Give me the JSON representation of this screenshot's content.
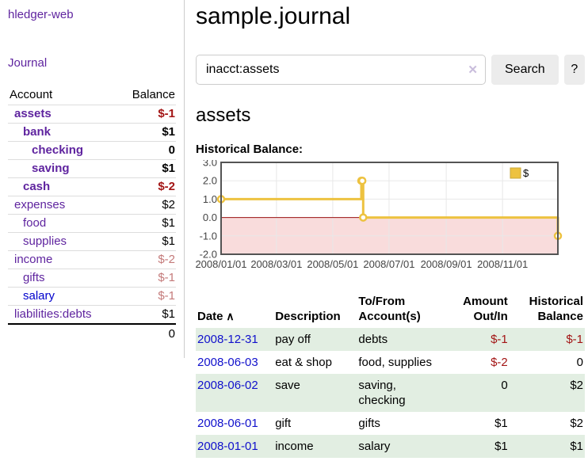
{
  "app": {
    "title": "hledger-web"
  },
  "sidebar": {
    "journal_link": "Journal",
    "accounts_table": {
      "headers": [
        "Account",
        "Balance"
      ],
      "rows": [
        {
          "account": "assets",
          "balance": "$-1",
          "depth": 1,
          "matched": true
        },
        {
          "account": "bank",
          "balance": "$1",
          "depth": 2,
          "matched": true
        },
        {
          "account": "checking",
          "balance": "0",
          "depth": 3,
          "matched": true
        },
        {
          "account": "saving",
          "balance": "$1",
          "depth": 3,
          "matched": true
        },
        {
          "account": "cash",
          "balance": "$-2",
          "depth": 2,
          "matched": true
        },
        {
          "account": "expenses",
          "balance": "$2",
          "depth": 1,
          "matched": false
        },
        {
          "account": "food",
          "balance": "$1",
          "depth": 2,
          "matched": false
        },
        {
          "account": "supplies",
          "balance": "$1",
          "depth": 2,
          "matched": false
        },
        {
          "account": "income",
          "balance": "$-2",
          "depth": 1,
          "matched": false
        },
        {
          "account": "gifts",
          "balance": "$-1",
          "depth": 2,
          "matched": false
        },
        {
          "account": "salary",
          "balance": "$-1",
          "depth": 2,
          "matched": false,
          "link_style": "blue"
        },
        {
          "account": "liabilities:debts",
          "balance": "$1",
          "depth": 1,
          "matched": false
        }
      ],
      "total": "0"
    }
  },
  "header": {
    "title": "sample.journal"
  },
  "search": {
    "value": "inacct:assets",
    "clear_icon": "✕",
    "button_label": "Search",
    "help_label": "?"
  },
  "account_page": {
    "title": "assets",
    "chart_label": "Historical Balance:"
  },
  "chart_data": {
    "type": "line",
    "title": "Historical Balance",
    "step": true,
    "series": [
      {
        "name": "$",
        "color": "#edc240"
      }
    ],
    "x": [
      "2008-01-01",
      "2008-06-01",
      "2008-06-02",
      "2008-06-03",
      "2008-12-31"
    ],
    "y": [
      1,
      2,
      2,
      0,
      -1
    ],
    "xlim": [
      "2008-01-01",
      "2008-12-31"
    ],
    "ylim": [
      -2,
      3
    ],
    "x_ticks": [
      {
        "date": "2008-01-01",
        "label": "2008/01/01"
      },
      {
        "date": "2008-03-01",
        "label": "2008/03/01"
      },
      {
        "date": "2008-05-01",
        "label": "2008/05/01"
      },
      {
        "date": "2008-07-01",
        "label": "2008/07/01"
      },
      {
        "date": "2008-09-01",
        "label": "2008/09/01"
      },
      {
        "date": "2008-11-01",
        "label": "2008/11/01"
      }
    ],
    "y_ticks": [
      {
        "value": 3,
        "label": "3.0"
      },
      {
        "value": 2,
        "label": "2.0"
      },
      {
        "value": 1,
        "label": "1.0"
      },
      {
        "value": 0,
        "label": "0.0"
      },
      {
        "value": -1,
        "label": "-1.0"
      },
      {
        "value": -2,
        "label": "-2.0"
      }
    ],
    "legend": {
      "label": "$",
      "position": "top-right"
    },
    "grid": true,
    "colors": {
      "series": "#edc240",
      "marker_fill": "#ffffff",
      "grid": "#e8e8e8",
      "border": "#545454",
      "negative_region": "#f9dcdc",
      "zero_line": "#991111",
      "tick_text": "#444444"
    }
  },
  "register_table": {
    "headers": [
      {
        "label": "Date",
        "align": "left",
        "sorted": true
      },
      {
        "label": "Description",
        "align": "left"
      },
      {
        "label": "To/From\nAccount(s)",
        "align": "left"
      },
      {
        "label": "Amount\nOut/In",
        "align": "right"
      },
      {
        "label": "Historical\nBalance",
        "align": "right"
      }
    ],
    "sort_arrow": "∧",
    "rows": [
      {
        "date": "2008-12-31",
        "description": "pay off",
        "accounts": "debts",
        "amount": "$-1",
        "balance": "$-1"
      },
      {
        "date": "2008-06-03",
        "description": "eat & shop",
        "accounts": "food, supplies",
        "amount": "$-2",
        "balance": "0"
      },
      {
        "date": "2008-06-02",
        "description": "save",
        "accounts": "saving, checking",
        "amount": "0",
        "balance": "$2"
      },
      {
        "date": "2008-06-01",
        "description": "gift",
        "accounts": "gifts",
        "amount": "$1",
        "balance": "$2"
      },
      {
        "date": "2008-01-01",
        "description": "income",
        "accounts": "salary",
        "amount": "$1",
        "balance": "$1"
      }
    ]
  }
}
